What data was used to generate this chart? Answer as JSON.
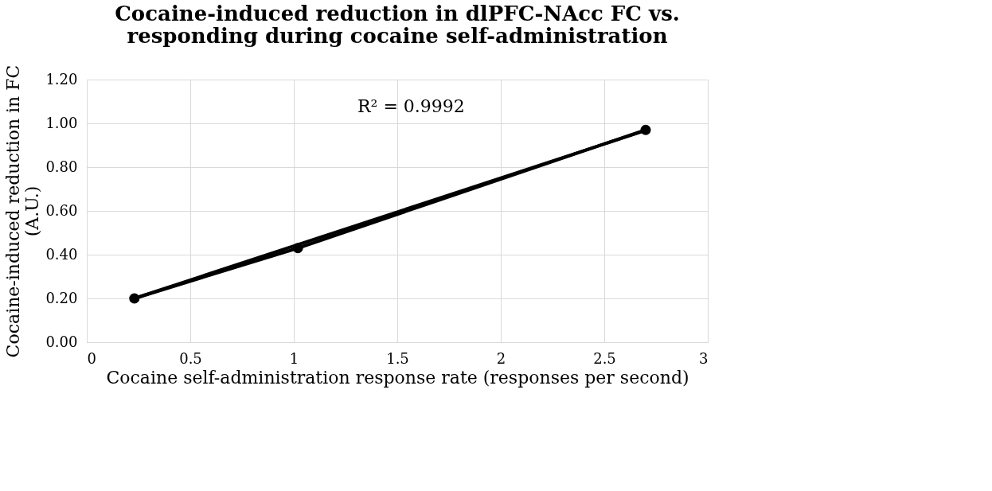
{
  "chart_data": {
    "type": "line",
    "title": "Cocaine-induced reduction in dlPFC-NAcc FC vs.\nresponding during cocaine self-administration",
    "xlabel": "Cocaine self-administration response rate (responses per second)",
    "ylabel": "Cocaine-induced reduction in FC\n(A.U.)",
    "series": [
      {
        "color": "#000000",
        "x": [
          0.23,
          1.02,
          2.7
        ],
        "values": [
          0.2,
          0.43,
          0.97
        ],
        "marker": "circle"
      },
      {
        "type": "line",
        "color": "#000000",
        "x": [
          0.23,
          2.7
        ],
        "values": [
          0.2,
          0.968
        ],
        "marker": "none"
      }
    ],
    "annotations": [
      "R² = 0.9992"
    ],
    "xlim": [
      0,
      3
    ],
    "xticks": [
      0,
      0.5,
      1,
      1.5,
      2,
      2.5,
      3
    ],
    "ylim": [
      0,
      1.2
    ],
    "yticks": [
      {
        "value": 0,
        "label": "0.00"
      },
      {
        "value": 0.2,
        "label": "0.20"
      },
      {
        "value": 0.4,
        "label": "0.40"
      },
      {
        "value": 0.6,
        "label": "0.60"
      },
      {
        "value": 0.8,
        "label": "0.80"
      },
      {
        "value": 1.0,
        "label": "1.00"
      },
      {
        "value": 1.2,
        "label": "1.20"
      }
    ],
    "grid": true
  }
}
